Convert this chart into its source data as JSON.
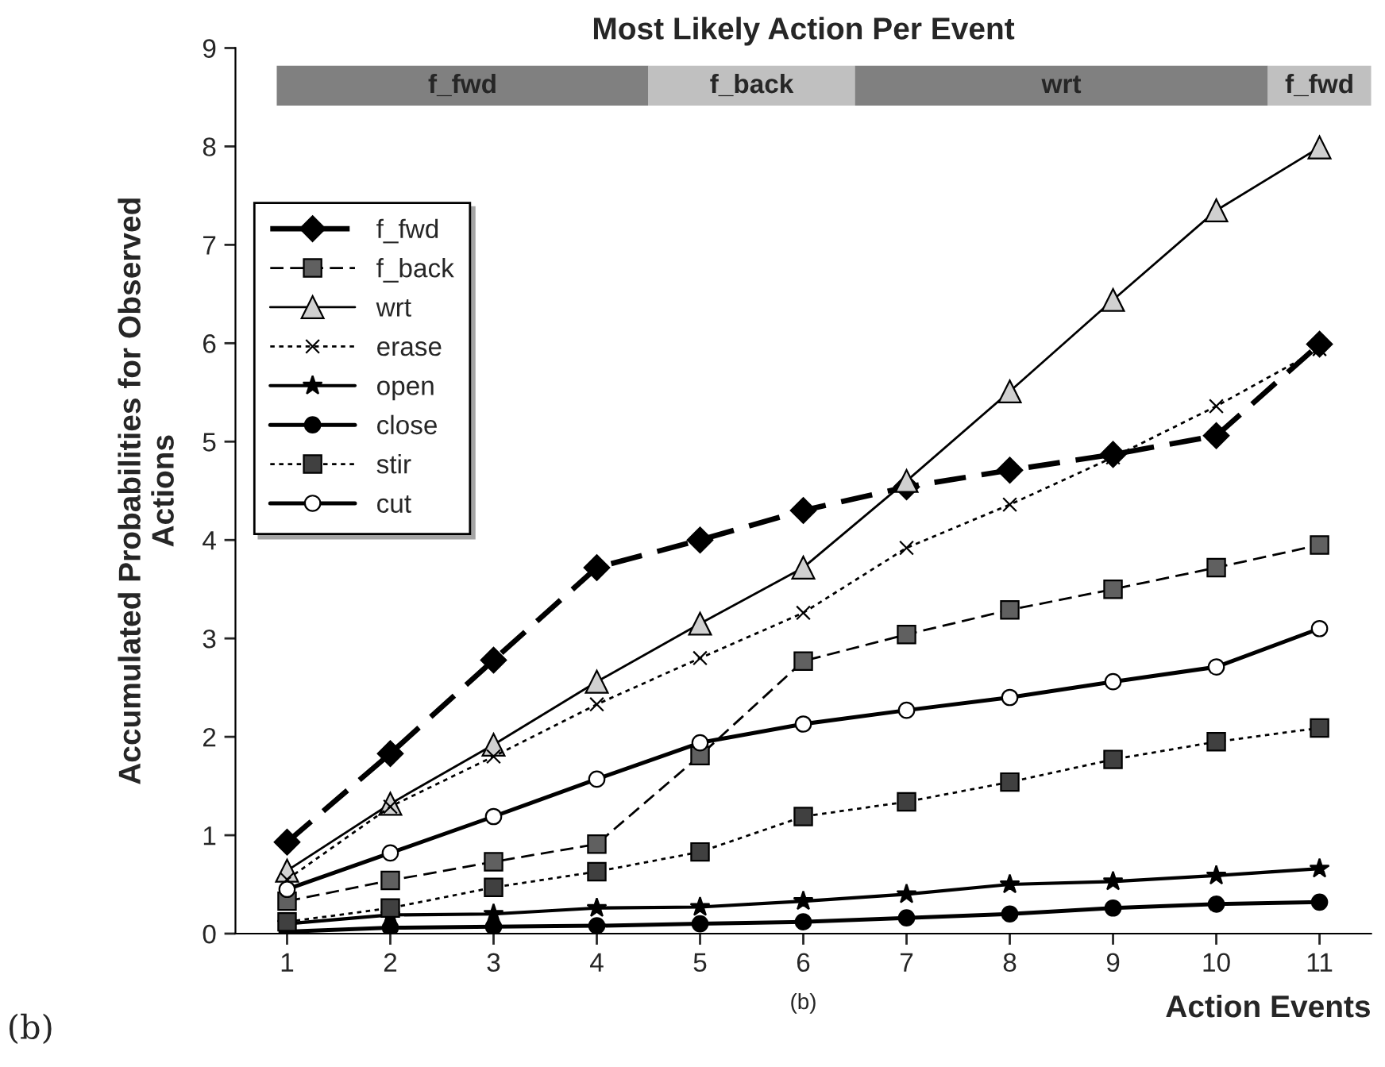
{
  "chart_data": {
    "type": "line",
    "title": "Most Likely Action Per Event",
    "xlabel": "Action Events",
    "ylabel": "Accumulated Probabilities for Observed\nActions",
    "x": [
      1,
      2,
      3,
      4,
      5,
      6,
      7,
      8,
      9,
      10,
      11
    ],
    "xlim": [
      0.5,
      11.5
    ],
    "xticks": [
      1,
      2,
      3,
      4,
      5,
      6,
      7,
      8,
      9,
      10,
      11
    ],
    "ylim": [
      0,
      9
    ],
    "yticks": [
      0,
      1,
      2,
      3,
      4,
      5,
      6,
      7,
      8,
      9
    ],
    "grid": false,
    "legend": "top left",
    "series": [
      {
        "name": "f_fwd",
        "color": "#000000",
        "marker": "diamond",
        "line_style": "dashed",
        "values": [
          0.93,
          1.83,
          2.78,
          3.72,
          4.0,
          4.3,
          4.54,
          4.71,
          4.87,
          5.06,
          5.99
        ]
      },
      {
        "name": "f_back",
        "color": "#606060",
        "marker": "square",
        "line_style": "dashed",
        "values": [
          0.33,
          0.54,
          0.73,
          0.91,
          1.81,
          2.77,
          3.04,
          3.29,
          3.5,
          3.72,
          3.95
        ]
      },
      {
        "name": "wrt",
        "color": "#d0d0d0",
        "marker": "triangle",
        "line_style": "solid",
        "values": [
          0.64,
          1.32,
          1.92,
          2.56,
          3.15,
          3.72,
          4.6,
          5.51,
          6.44,
          7.35,
          7.99
        ]
      },
      {
        "name": "erase",
        "color": "#000000",
        "marker": "cross",
        "line_style": "dotted",
        "values": [
          0.55,
          1.29,
          1.8,
          2.33,
          2.8,
          3.26,
          3.92,
          4.36,
          4.84,
          5.36,
          5.94
        ]
      },
      {
        "name": "open",
        "color": "#000000",
        "marker": "star",
        "line_style": "solid",
        "values": [
          0.1,
          0.19,
          0.2,
          0.26,
          0.27,
          0.33,
          0.4,
          0.5,
          0.53,
          0.59,
          0.66
        ]
      },
      {
        "name": "close",
        "color": "#000000",
        "marker": "circle",
        "line_style": "solid",
        "values": [
          0.02,
          0.06,
          0.07,
          0.08,
          0.1,
          0.12,
          0.16,
          0.2,
          0.26,
          0.3,
          0.32
        ]
      },
      {
        "name": "stir",
        "color": "#404040",
        "marker": "square",
        "line_style": "dotted",
        "values": [
          0.12,
          0.26,
          0.47,
          0.63,
          0.83,
          1.19,
          1.34,
          1.54,
          1.77,
          1.95,
          2.09
        ]
      },
      {
        "name": "cut",
        "color": "#ffffff",
        "marker": "circle",
        "line_style": "solid",
        "values": [
          0.45,
          0.82,
          1.19,
          1.57,
          1.94,
          2.13,
          2.27,
          2.4,
          2.56,
          2.71,
          3.1
        ]
      }
    ],
    "bands": [
      {
        "axis": "x",
        "from": 0.9,
        "to": 4.5,
        "label": "f_fwd",
        "color": "#808080"
      },
      {
        "axis": "x",
        "from": 4.5,
        "to": 6.5,
        "label": "f_back",
        "color": "#c0c0c0"
      },
      {
        "axis": "x",
        "from": 6.5,
        "to": 10.5,
        "label": "wrt",
        "color": "#808080"
      },
      {
        "axis": "x",
        "from": 10.5,
        "to": 11.5,
        "label": "f_fwd",
        "color": "#c0c0c0"
      }
    ],
    "annotations": [
      "(b)",
      "(b)"
    ]
  }
}
